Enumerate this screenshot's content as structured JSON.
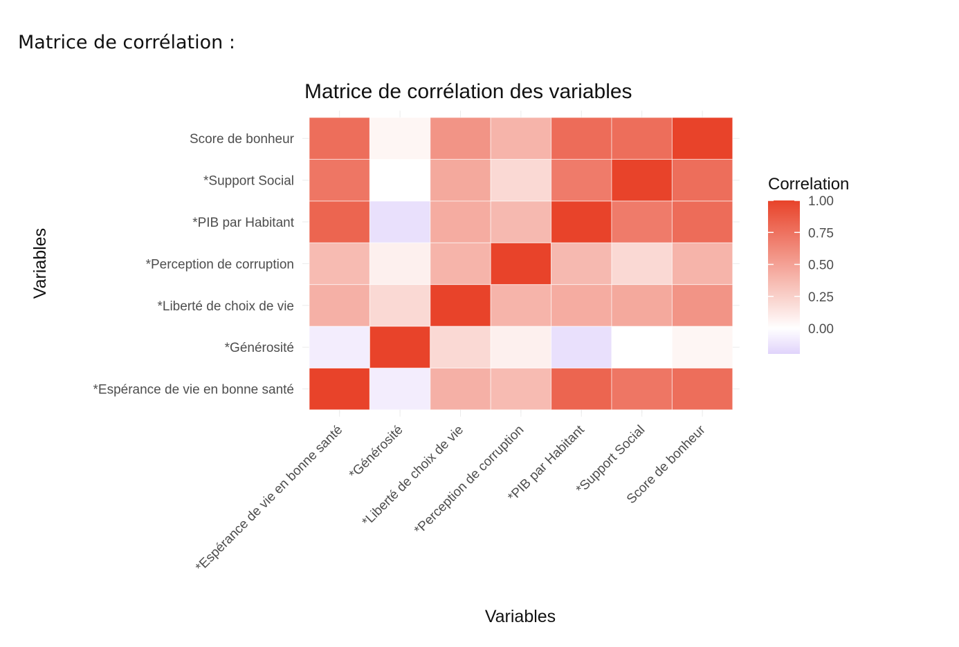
{
  "page": {
    "heading": "Matrice de corrélation :"
  },
  "chart_data": {
    "type": "heatmap",
    "title": "Matrice de corrélation des variables",
    "xlabel": "Variables",
    "ylabel": "Variables",
    "variables": [
      "*Espérance de vie en bonne santé",
      "*Générosité",
      "*Liberté de choix de vie",
      "*Perception de corruption",
      "*PIB par Habitant",
      "*Support Social",
      "Score de bonheur"
    ],
    "values": [
      [
        1.0,
        -0.08,
        0.42,
        0.36,
        0.82,
        0.73,
        0.77
      ],
      [
        -0.08,
        1.0,
        0.2,
        0.08,
        -0.14,
        0.0,
        0.05
      ],
      [
        0.42,
        0.2,
        1.0,
        0.4,
        0.44,
        0.46,
        0.57
      ],
      [
        0.36,
        0.08,
        0.4,
        1.0,
        0.37,
        0.2,
        0.4
      ],
      [
        0.82,
        -0.14,
        0.44,
        0.37,
        1.0,
        0.7,
        0.78
      ],
      [
        0.73,
        0.0,
        0.46,
        0.2,
        0.7,
        1.0,
        0.77
      ],
      [
        0.77,
        0.05,
        0.57,
        0.4,
        0.78,
        0.77,
        1.0
      ]
    ],
    "color_scale": {
      "low": "#e0d3fb",
      "mid": "#ffffff",
      "high": "#e8432a",
      "limits": [
        -0.2,
        1.0
      ]
    },
    "legend": {
      "title": "Correlation",
      "breaks": [
        "1.00",
        "0.75",
        "0.50",
        "0.25",
        "0.00"
      ],
      "placement": "right"
    },
    "grid": true
  }
}
